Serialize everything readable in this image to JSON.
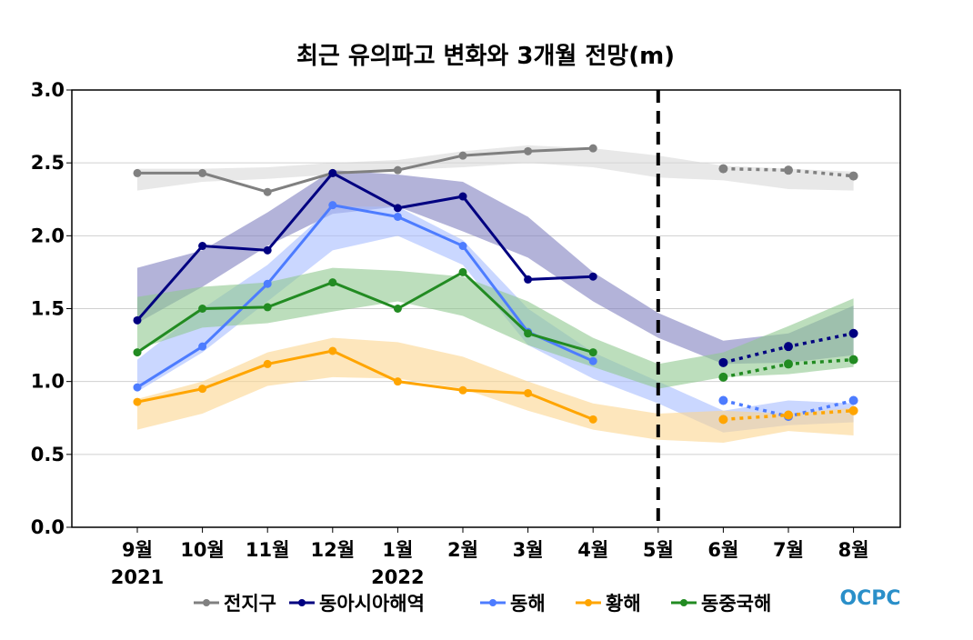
{
  "chart_data": {
    "type": "line",
    "title": "최근 유의파고 변화와 3개월 전망(m)",
    "xlabel": "",
    "ylabel": "",
    "ylim": [
      0,
      3
    ],
    "yticks": [
      "0.0",
      "0.5",
      "1.0",
      "1.5",
      "2.0",
      "2.5",
      "3.0"
    ],
    "categories": [
      "9월",
      "10월",
      "11월",
      "12월",
      "1월",
      "2월",
      "3월",
      "4월",
      "5월",
      "6월",
      "7월",
      "8월"
    ],
    "year_labels": [
      {
        "index": 0,
        "label": "2021"
      },
      {
        "index": 4,
        "label": "2022"
      }
    ],
    "forecast_divider_category": "5월",
    "grid": true,
    "legend_position": "bottom",
    "logo_text": "OCPC",
    "series": [
      {
        "name": "전지구",
        "color": "#808080",
        "band_color": "#d9d9d9",
        "observed": [
          2.43,
          2.43,
          2.3,
          2.43,
          2.45,
          2.55,
          2.58,
          2.6,
          null,
          null,
          null,
          null
        ],
        "forecast": [
          null,
          null,
          null,
          null,
          null,
          null,
          null,
          null,
          null,
          2.46,
          2.45,
          2.41
        ],
        "band_low": [
          2.31,
          2.37,
          2.39,
          2.42,
          2.45,
          2.47,
          2.5,
          2.47,
          2.4,
          2.38,
          2.32,
          2.31
        ],
        "band_high": [
          2.46,
          2.46,
          2.47,
          2.5,
          2.52,
          2.58,
          2.62,
          2.6,
          2.55,
          2.48,
          2.46,
          2.44
        ]
      },
      {
        "name": "동아시아해역",
        "color": "#000080",
        "band_color": "#8080c0",
        "observed": [
          1.42,
          1.93,
          1.9,
          2.43,
          2.19,
          2.27,
          1.7,
          1.72,
          null,
          null,
          null,
          null
        ],
        "forecast": [
          null,
          null,
          null,
          null,
          null,
          null,
          null,
          null,
          null,
          1.13,
          1.24,
          1.33
        ],
        "band_low": [
          1.4,
          1.65,
          1.93,
          2.15,
          2.2,
          2.03,
          1.85,
          1.55,
          1.3,
          1.12,
          1.13,
          1.18
        ],
        "band_high": [
          1.78,
          1.9,
          2.16,
          2.45,
          2.42,
          2.37,
          2.13,
          1.75,
          1.47,
          1.28,
          1.33,
          1.52
        ]
      },
      {
        "name": "동해",
        "color": "#4d7cff",
        "band_color": "#a6bcff",
        "observed": [
          0.96,
          1.24,
          1.67,
          2.21,
          2.13,
          1.93,
          1.34,
          1.14,
          null,
          null,
          null,
          null
        ],
        "forecast": [
          null,
          null,
          null,
          null,
          null,
          null,
          null,
          null,
          null,
          0.87,
          0.76,
          0.87
        ],
        "band_low": [
          0.93,
          1.2,
          1.55,
          1.9,
          2.0,
          1.8,
          1.25,
          1.02,
          0.85,
          0.65,
          0.7,
          0.72
        ],
        "band_high": [
          1.15,
          1.5,
          1.8,
          2.2,
          2.2,
          1.97,
          1.5,
          1.2,
          1.0,
          0.8,
          0.87,
          0.85
        ]
      },
      {
        "name": "황해",
        "color": "#ffa500",
        "band_color": "#fcd590",
        "observed": [
          0.86,
          0.95,
          1.12,
          1.21,
          1.0,
          0.94,
          0.92,
          0.74,
          null,
          null,
          null,
          null
        ],
        "forecast": [
          null,
          null,
          null,
          null,
          null,
          null,
          null,
          null,
          null,
          0.74,
          0.77,
          0.8
        ],
        "band_low": [
          0.67,
          0.78,
          0.97,
          1.03,
          1.02,
          0.95,
          0.8,
          0.67,
          0.6,
          0.58,
          0.66,
          0.63
        ],
        "band_high": [
          0.88,
          1.0,
          1.2,
          1.3,
          1.27,
          1.17,
          1.0,
          0.85,
          0.78,
          0.8,
          0.78,
          0.82
        ]
      },
      {
        "name": "동중국해",
        "color": "#228b22",
        "band_color": "#90c890",
        "observed": [
          1.2,
          1.5,
          1.51,
          1.68,
          1.5,
          1.75,
          1.33,
          1.2,
          null,
          null,
          null,
          null
        ],
        "forecast": [
          null,
          null,
          null,
          null,
          null,
          null,
          null,
          null,
          null,
          1.03,
          1.12,
          1.15
        ],
        "band_low": [
          1.22,
          1.37,
          1.4,
          1.48,
          1.55,
          1.45,
          1.25,
          1.1,
          0.95,
          1.03,
          1.05,
          1.1
        ],
        "band_high": [
          1.58,
          1.65,
          1.68,
          1.78,
          1.76,
          1.72,
          1.55,
          1.3,
          1.12,
          1.2,
          1.38,
          1.57
        ]
      }
    ]
  }
}
